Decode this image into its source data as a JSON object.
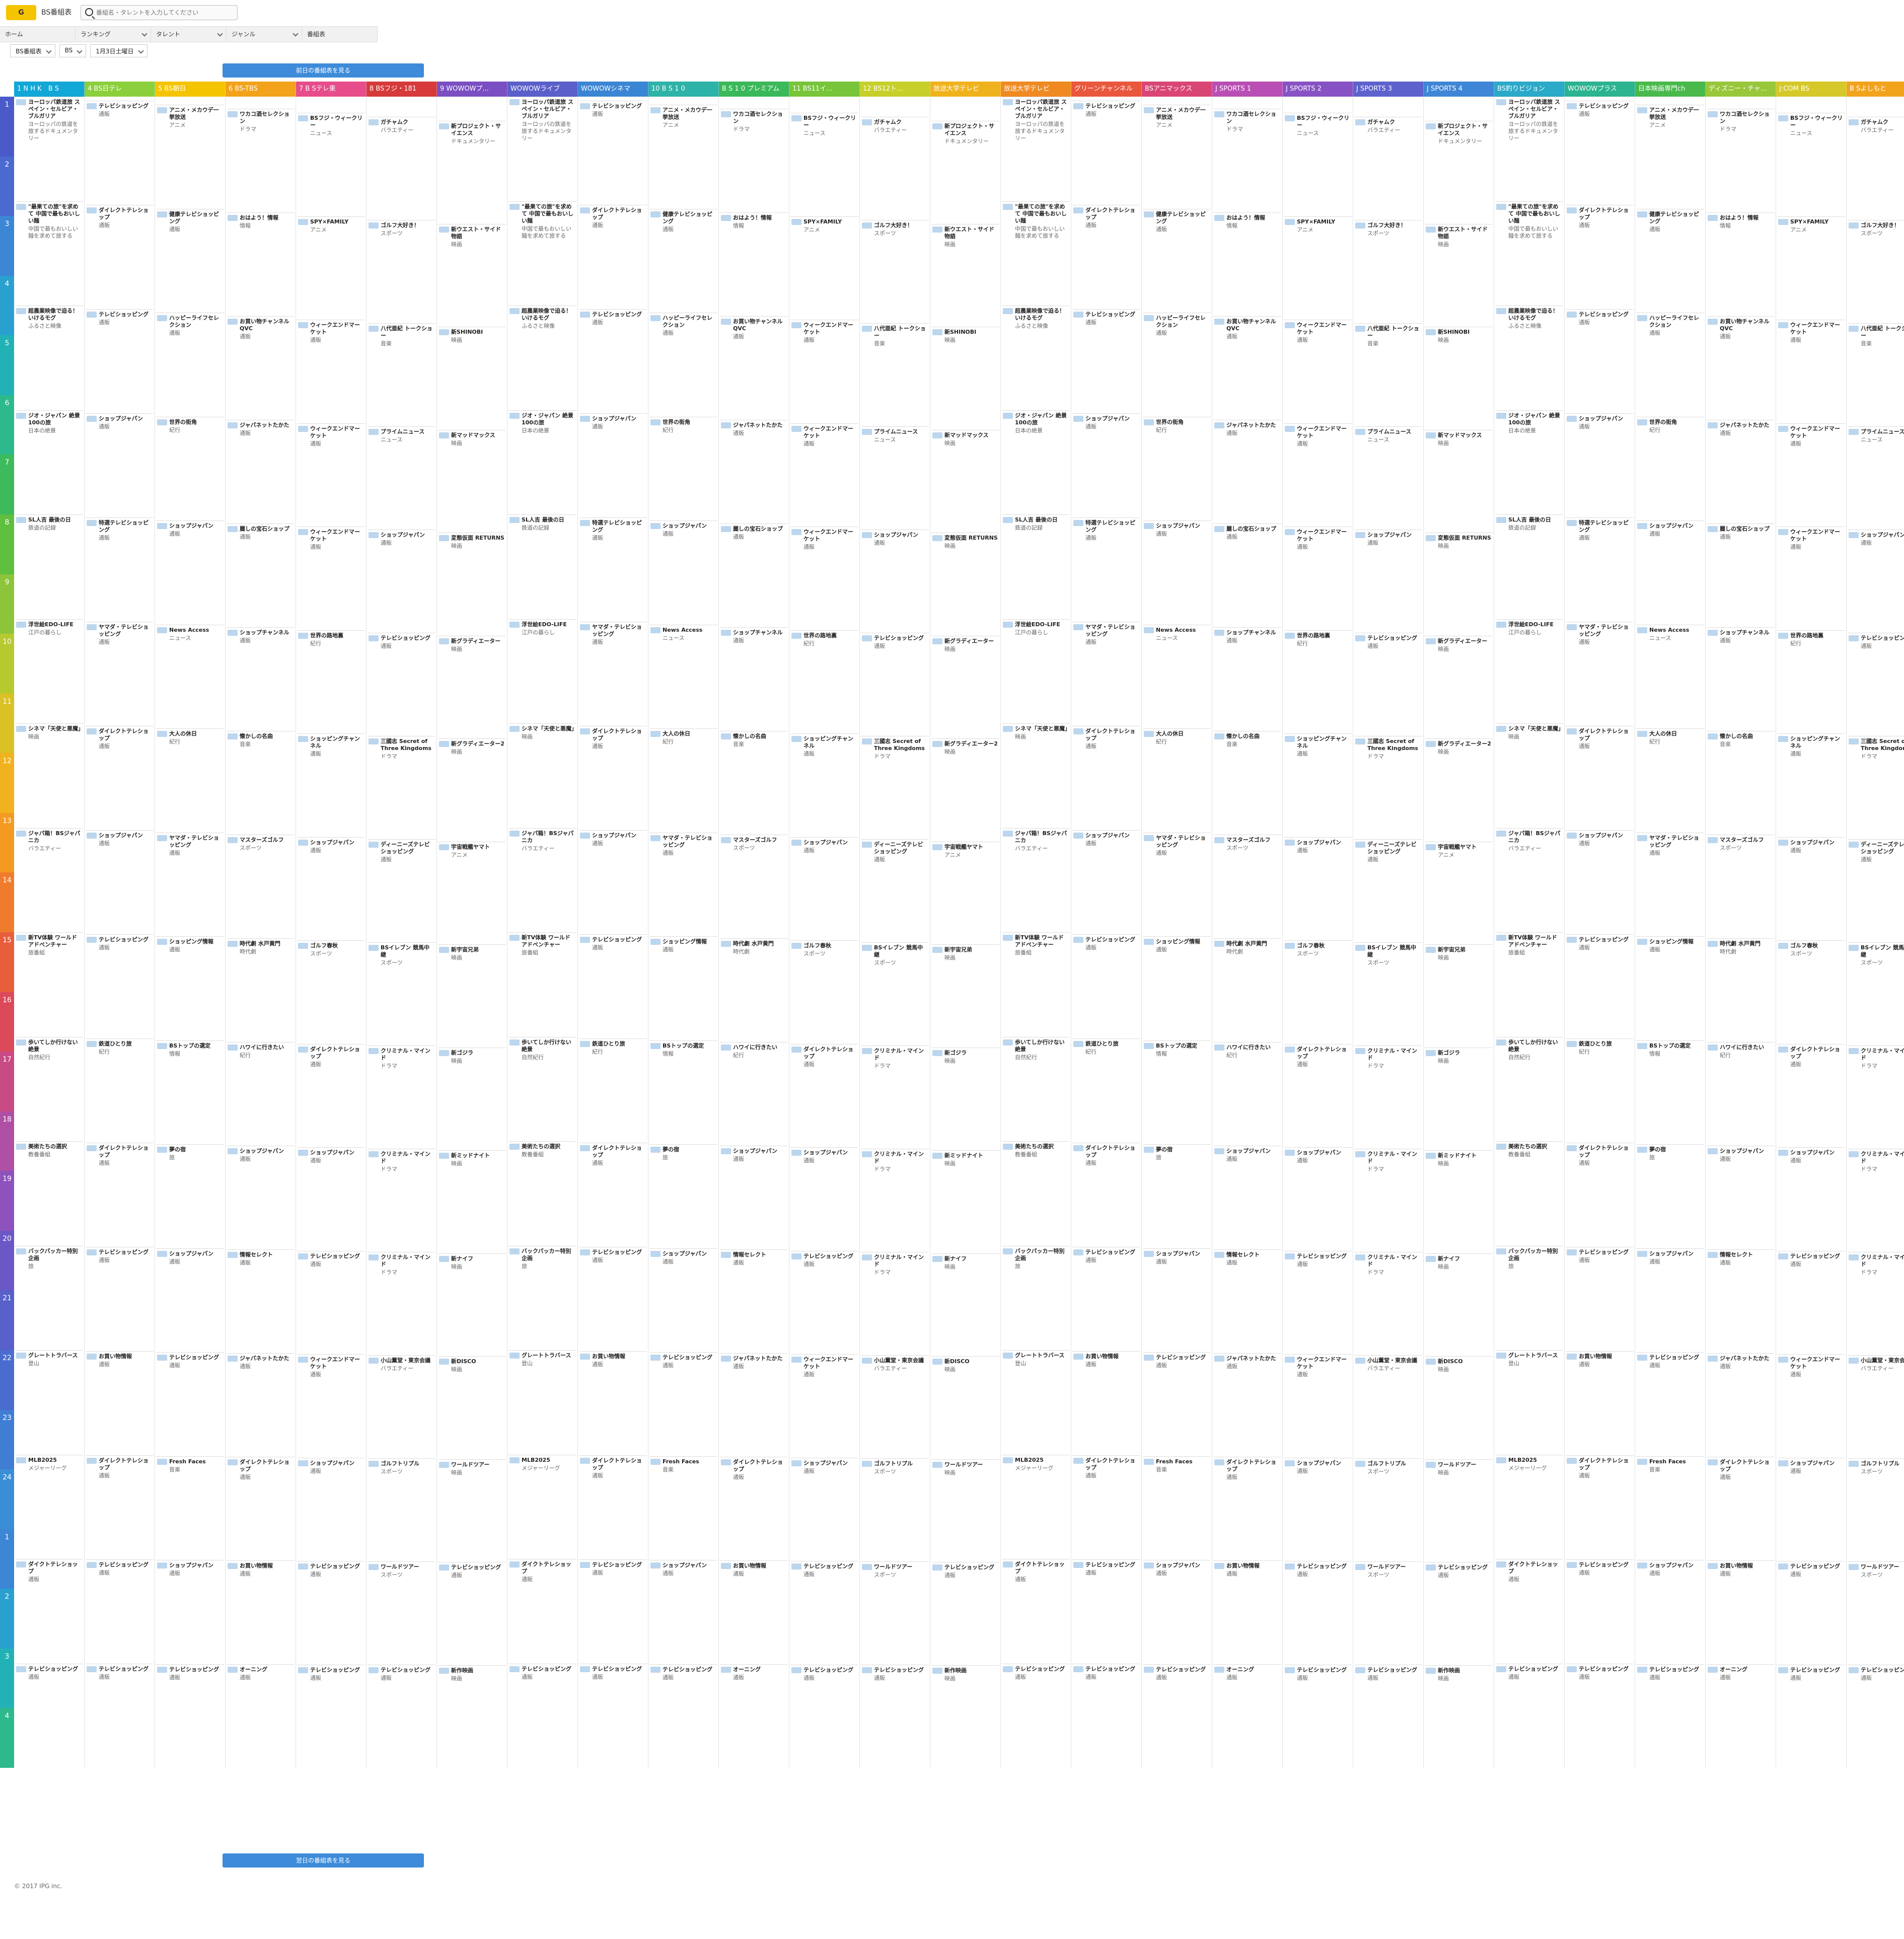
{
  "header": {
    "logo": "G",
    "brand": "BS番組表",
    "search_placeholder": "番組名・タレントを入力してください",
    "nav": [
      "ホーム",
      "ランキング",
      "タレント",
      "ジャンル",
      "番組表"
    ]
  },
  "controls": {
    "selects": [
      "BS番組表",
      "BS",
      "1月3日土曜日"
    ]
  },
  "prev_button": "前日の番組表を見る",
  "next_button": "翌日の番組表を見る",
  "footer": "© 2017 IPG inc.",
  "channels": [
    {
      "name": "1 N H K　B S",
      "color": "#12a7d6"
    },
    {
      "name": "4 BS日テレ",
      "color": "#8ccf3d"
    },
    {
      "name": "5 BS朝日",
      "color": "#f5c400"
    },
    {
      "name": "6 BS-TBS",
      "color": "#f2a21b"
    },
    {
      "name": "7 B Sテレ東",
      "color": "#e64d8a"
    },
    {
      "name": "8 BSフジ・181",
      "color": "#d63a3a"
    },
    {
      "name": "9 WOWOWプ...",
      "color": "#7b4fc2"
    },
    {
      "name": "WOWOWライブ",
      "color": "#5a5fc9"
    },
    {
      "name": "WOWOWシネマ",
      "color": "#3b86d4"
    },
    {
      "name": "10 B S 1 0",
      "color": "#2db3a8"
    },
    {
      "name": "B S 1 0 プレミアム",
      "color": "#3bb85a"
    },
    {
      "name": "11 BS11イ...",
      "color": "#78c43a"
    },
    {
      "name": "12 BS12ト...",
      "color": "#c7cf2b"
    },
    {
      "name": "放送大学テレビ",
      "color": "#f0b21c"
    },
    {
      "name": "放送大学テレビ",
      "color": "#ef8a22"
    },
    {
      "name": "グリーンチャンネル",
      "color": "#e9573d"
    },
    {
      "name": "BSアニマックス",
      "color": "#d94675"
    },
    {
      "name": "J SPORTS 1",
      "color": "#b94fb5"
    },
    {
      "name": "J SPORTS 2",
      "color": "#8752c4"
    },
    {
      "name": "J SPORTS 3",
      "color": "#5d62cc"
    },
    {
      "name": "J SPORTS 4",
      "color": "#3f86d6"
    },
    {
      "name": "BS釣りビジョン",
      "color": "#2aa9c9"
    },
    {
      "name": "WOWOWプラス",
      "color": "#2bb48f"
    },
    {
      "name": "日本映画専門ch",
      "color": "#49b94b"
    },
    {
      "name": "ディズニー・チャ...",
      "color": "#98c73a"
    },
    {
      "name": "J:COM BS",
      "color": "#d5c828"
    },
    {
      "name": "B Sよしもと",
      "color": "#f2a31c"
    }
  ],
  "hours": [
    "1",
    "2",
    "3",
    "4",
    "5",
    "6",
    "7",
    "8",
    "9",
    "10",
    "11",
    "12",
    "13",
    "14",
    "15",
    "16",
    "17",
    "18",
    "19",
    "20",
    "21",
    "22",
    "23",
    "24",
    "1",
    "2",
    "3",
    "4"
  ],
  "hour_colors": [
    "#4a5bc9",
    "#4a6ad0",
    "#3c86d6",
    "#2aa0cf",
    "#22b2b6",
    "#2db98c",
    "#3dba5c",
    "#5fbf3e",
    "#8cc43a",
    "#b6c92e",
    "#d9c126",
    "#f0b31f",
    "#f49a22",
    "#ef7c2c",
    "#e85e3b",
    "#dc4a5a",
    "#c84b84",
    "#b04fa6",
    "#8e52bd",
    "#6d57c6",
    "#5860ca",
    "#4b6ccf",
    "#3f7ed3",
    "#3a8ed6",
    "#3c86d6",
    "#2aa0cf",
    "#22b2b6",
    "#2db98c"
  ],
  "programs": [
    [
      {
        "t": "ヨーロッパ鉄道旅 スペイン・セルビア・ブルガリア",
        "d": "ヨーロッパの鉄道を旅するドキュメンタリー"
      },
      {
        "t": "\"最果ての旅\"を求めて 中国で最もおいしい麺",
        "d": "中国で最もおいしい麺を求めて旅する"
      },
      {
        "t": "超農業映像で迫る！いけるモグ",
        "d": "ふるさと映像"
      },
      {
        "t": "ジオ・ジャパン 絶景100の旅",
        "d": "日本の絶景"
      },
      {
        "t": "SL人吉 最後の日",
        "d": "鉄道の記録"
      },
      {
        "t": "浮世絵EDO-LIFE",
        "d": "江戸の暮らし"
      },
      {
        "t": "シネマ「天使と悪魔」",
        "d": "映画"
      },
      {
        "t": "ジャパ箱！BSジャパニカ",
        "d": "バラエティー"
      },
      {
        "t": "新TV体験 ワールドアドベンチャー",
        "d": "旅番組"
      },
      {
        "t": "歩いてしか行けない絶景",
        "d": "自然紀行"
      },
      {
        "t": "美術たちの選択",
        "d": "教養番組"
      },
      {
        "t": "バックパッカー特別企画",
        "d": "旅"
      },
      {
        "t": "グレートトラバース",
        "d": "登山"
      },
      {
        "t": "MLB2025",
        "d": "メジャーリーグ"
      },
      {
        "t": "ダイクトテレショップ",
        "d": "通販"
      },
      {
        "t": "テレビショッピング",
        "d": "通販"
      }
    ],
    [
      {
        "t": "テレビショッピング",
        "d": "通販"
      },
      {
        "t": "ダイレクトテレショップ",
        "d": "通販"
      },
      {
        "t": "テレビショッピング",
        "d": "通販"
      },
      {
        "t": "ショップジャパン",
        "d": "通販"
      },
      {
        "t": "特選テレビショッピング",
        "d": "通販"
      },
      {
        "t": "ヤマダ・テレビショッピング",
        "d": "通販"
      },
      {
        "t": "ダイレクトテレショップ",
        "d": "通販"
      },
      {
        "t": "ショップジャパン",
        "d": "通販"
      },
      {
        "t": "テレビショッピング",
        "d": "通販"
      },
      {
        "t": "鉄道ひとり旅",
        "d": "紀行"
      },
      {
        "t": "ダイレクトテレショップ",
        "d": "通販"
      },
      {
        "t": "テレビショッピング",
        "d": "通販"
      },
      {
        "t": "お買い物情報",
        "d": "通販"
      },
      {
        "t": "ダイレクトテレショップ",
        "d": "通販"
      },
      {
        "t": "テレビショッピング",
        "d": "通販"
      },
      {
        "t": "テレビショッピング",
        "d": "通販"
      }
    ],
    [
      {
        "t": "アニメ・メカウデ一挙放送",
        "d": "アニメ"
      },
      {
        "t": "健康テレビショッピング",
        "d": "通販"
      },
      {
        "t": "ハッピーライフセレクション",
        "d": "通販"
      },
      {
        "t": "世界の街角",
        "d": "紀行"
      },
      {
        "t": "ショップジャパン",
        "d": "通販"
      },
      {
        "t": "News Access",
        "d": "ニュース"
      },
      {
        "t": "大人の休日",
        "d": "紀行"
      },
      {
        "t": "ヤマダ・テレビショッピング",
        "d": "通販"
      },
      {
        "t": "ショッピング情報",
        "d": "通販"
      },
      {
        "t": "BSトップの選定",
        "d": "情報"
      },
      {
        "t": "夢の宿",
        "d": "旅"
      },
      {
        "t": "ショップジャパン",
        "d": "通販"
      },
      {
        "t": "テレビショッピング",
        "d": "通販"
      },
      {
        "t": "Fresh Faces",
        "d": "音楽"
      },
      {
        "t": "ショップジャパン",
        "d": "通販"
      },
      {
        "t": "テレビショッピング",
        "d": "通販"
      }
    ],
    [
      {
        "t": "ワカコ酒セレクション",
        "d": "ドラマ"
      },
      {
        "t": "おはよう！情報",
        "d": "情報"
      },
      {
        "t": "お買い物チャンネルQVC",
        "d": "通販"
      },
      {
        "t": "ジャパネットたかた",
        "d": "通販"
      },
      {
        "t": "麗しの宝石ショップ",
        "d": "通販"
      },
      {
        "t": "ショップチャンネル",
        "d": "通販"
      },
      {
        "t": "懐かしの名曲",
        "d": "音楽"
      },
      {
        "t": "マスターズゴルフ",
        "d": "スポーツ"
      },
      {
        "t": "時代劇 水戸黄門",
        "d": "時代劇"
      },
      {
        "t": "ハワイに行きたい",
        "d": "紀行"
      },
      {
        "t": "ショップジャパン",
        "d": "通販"
      },
      {
        "t": "情報セレクト",
        "d": "通販"
      },
      {
        "t": "ジャパネットたかた",
        "d": "通販"
      },
      {
        "t": "ダイレクトテレショップ",
        "d": "通販"
      },
      {
        "t": "お買い物情報",
        "d": "通販"
      },
      {
        "t": "オーニング",
        "d": "通販"
      }
    ],
    [
      {
        "t": "BSフジ・ウィークリー",
        "d": "ニュース"
      },
      {
        "t": "SPY×FAMILY",
        "d": "アニメ"
      },
      {
        "t": "ウィークエンドマーケット",
        "d": "通販"
      },
      {
        "t": "ウィークエンドマーケット",
        "d": "通販"
      },
      {
        "t": "ウィークエンドマーケット",
        "d": "通販"
      },
      {
        "t": "世界の路地裏",
        "d": "紀行"
      },
      {
        "t": "ショッピングチャンネル",
        "d": "通販"
      },
      {
        "t": "ショップジャパン",
        "d": "通販"
      },
      {
        "t": "ゴルフ春秋",
        "d": "スポーツ"
      },
      {
        "t": "ダイレクトテレショップ",
        "d": "通販"
      },
      {
        "t": "ショップジャパン",
        "d": "通販"
      },
      {
        "t": "テレビショッピング",
        "d": "通販"
      },
      {
        "t": "ウィークエンドマーケット",
        "d": "通販"
      },
      {
        "t": "ショップジャパン",
        "d": "通販"
      },
      {
        "t": "テレビショッピング",
        "d": "通販"
      },
      {
        "t": "テレビショッピング",
        "d": "通販"
      }
    ],
    [
      {
        "t": "ガチャムク",
        "d": "バラエティー"
      },
      {
        "t": "ゴルフ大好き！",
        "d": "スポーツ"
      },
      {
        "t": "八代亜紀 トークショー",
        "d": "音楽"
      },
      {
        "t": "プライムニュース",
        "d": "ニュース"
      },
      {
        "t": "ショップジャパン",
        "d": "通販"
      },
      {
        "t": "テレビショッピング",
        "d": "通販"
      },
      {
        "t": "三國志 Secret of Three Kingdoms",
        "d": "ドラマ"
      },
      {
        "t": "ディーニーズテレビショッピング",
        "d": "通販"
      },
      {
        "t": "BSイレブン 競馬中継",
        "d": "スポーツ"
      },
      {
        "t": "クリミナル・マインド",
        "d": "ドラマ"
      },
      {
        "t": "クリミナル・マインド",
        "d": "ドラマ"
      },
      {
        "t": "クリミナル・マインド",
        "d": "ドラマ"
      },
      {
        "t": "小山薫堂・東京会議",
        "d": "バラエティー"
      },
      {
        "t": "ゴルフトリプル",
        "d": "スポーツ"
      },
      {
        "t": "ワールドツアー",
        "d": "スポーツ"
      },
      {
        "t": "テレビショッピング",
        "d": "通販"
      }
    ],
    [
      {
        "t": "新プロジェクト・サイエンス",
        "d": "ドキュメンタリー"
      },
      {
        "t": "新ウエスト・サイド物語",
        "d": "映画"
      },
      {
        "t": "新SHINOBI",
        "d": "映画"
      },
      {
        "t": "新マッドマックス",
        "d": "映画"
      },
      {
        "t": "変態仮面 RETURNS",
        "d": "映画"
      },
      {
        "t": "新グラディエーター",
        "d": "映画"
      },
      {
        "t": "新グラディエーター2",
        "d": "映画"
      },
      {
        "t": "宇宙戦艦ヤマト",
        "d": "アニメ"
      },
      {
        "t": "新宇宙兄弟",
        "d": "映画"
      },
      {
        "t": "新ゴジラ",
        "d": "映画"
      },
      {
        "t": "新ミッドナイト",
        "d": "映画"
      },
      {
        "t": "新ナイフ",
        "d": "映画"
      },
      {
        "t": "新DISCO",
        "d": "映画"
      },
      {
        "t": "ワールドツアー",
        "d": "映画"
      },
      {
        "t": "テレビショッピング",
        "d": "通販"
      },
      {
        "t": "新作映画",
        "d": "映画"
      }
    ]
  ]
}
